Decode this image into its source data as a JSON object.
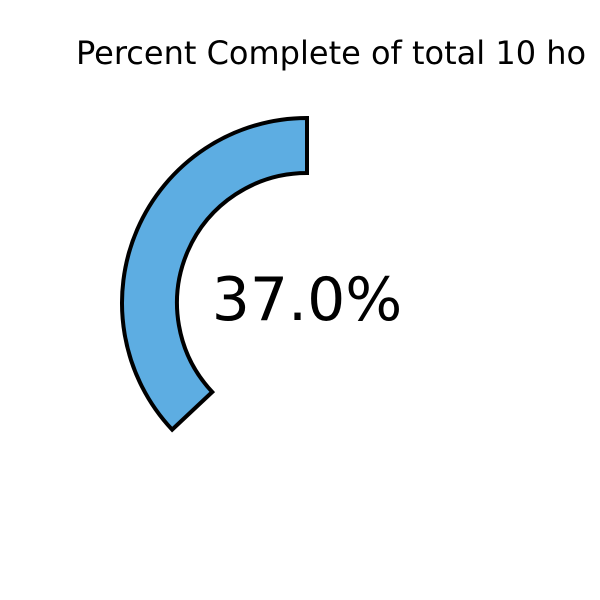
{
  "chart_data": {
    "type": "pie",
    "title": "Percent Complete of total 10 ho",
    "center_label": "37.0%",
    "slices": [
      {
        "label": "Complete",
        "value": 37.0,
        "color": "#5DADE2"
      }
    ],
    "total": 100,
    "start_angle_deg": 90,
    "direction": "counterclockwise",
    "edge_color": "#000000"
  }
}
